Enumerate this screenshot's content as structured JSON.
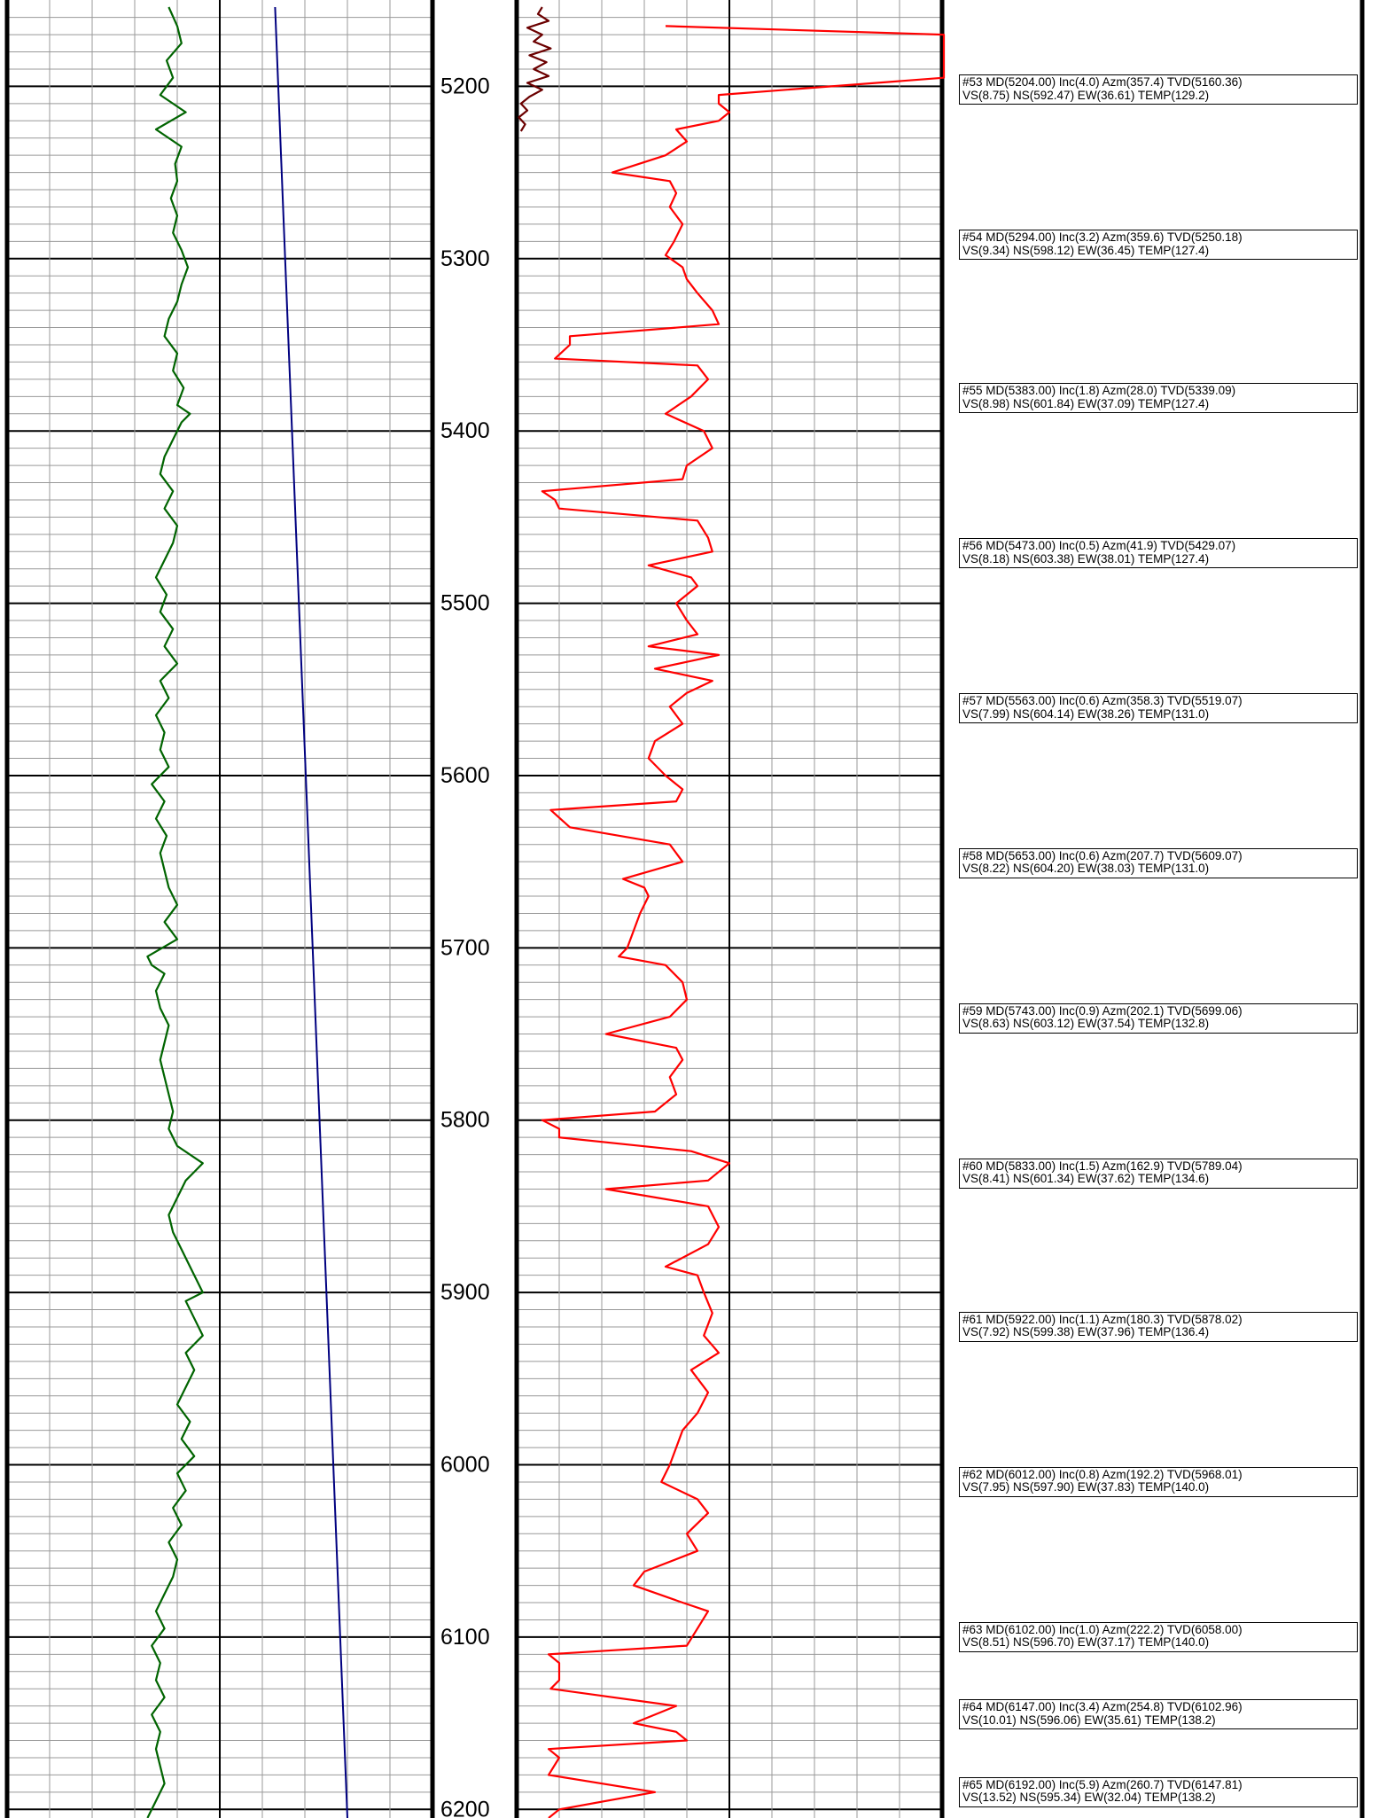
{
  "chart_data": {
    "type": "line",
    "title": "",
    "depth_range": [
      5154,
      6205
    ],
    "depth_labels": [
      5200,
      5300,
      5400,
      5500,
      5600,
      5700,
      5800,
      5900,
      6000,
      6100,
      6200
    ],
    "grid": true,
    "tracks": [
      {
        "name": "",
        "series": [
          {
            "name": "",
            "color": "#006400",
            "depth": [
              5154,
              5165,
              5175,
              5185,
              5195,
              5205,
              5215,
              5225,
              5235,
              5245,
              5255,
              5265,
              5275,
              5285,
              5295,
              5305,
              5315,
              5325,
              5335,
              5345,
              5355,
              5365,
              5375,
              5385,
              5390,
              5395,
              5405,
              5415,
              5425,
              5435,
              5445,
              5455,
              5465,
              5475,
              5485,
              5495,
              5505,
              5515,
              5525,
              5535,
              5545,
              5555,
              5565,
              5575,
              5585,
              5595,
              5605,
              5615,
              5625,
              5635,
              5645,
              5655,
              5665,
              5675,
              5685,
              5695,
              5705,
              5710,
              5715,
              5725,
              5735,
              5745,
              5755,
              5765,
              5775,
              5785,
              5795,
              5805,
              5815,
              5825,
              5830,
              5835,
              5845,
              5855,
              5865,
              5875,
              5885,
              5895,
              5900,
              5905,
              5915,
              5925,
              5935,
              5945,
              5955,
              5965,
              5975,
              5985,
              5995,
              6005,
              6015,
              6025,
              6035,
              6045,
              6055,
              6065,
              6075,
              6085,
              6095,
              6105,
              6115,
              6125,
              6135,
              6145,
              6155,
              6165,
              6175,
              6185,
              6195,
              6205
            ],
            "value": [
              0.76,
              0.8,
              0.82,
              0.75,
              0.78,
              0.72,
              0.84,
              0.7,
              0.82,
              0.79,
              0.8,
              0.77,
              0.8,
              0.78,
              0.82,
              0.85,
              0.82,
              0.8,
              0.76,
              0.74,
              0.8,
              0.78,
              0.83,
              0.8,
              0.86,
              0.82,
              0.78,
              0.74,
              0.72,
              0.78,
              0.74,
              0.8,
              0.78,
              0.74,
              0.7,
              0.75,
              0.72,
              0.78,
              0.74,
              0.8,
              0.72,
              0.76,
              0.7,
              0.74,
              0.72,
              0.76,
              0.68,
              0.74,
              0.7,
              0.75,
              0.72,
              0.74,
              0.76,
              0.8,
              0.74,
              0.8,
              0.66,
              0.68,
              0.74,
              0.7,
              0.72,
              0.76,
              0.74,
              0.72,
              0.74,
              0.76,
              0.78,
              0.76,
              0.8,
              0.92,
              0.88,
              0.84,
              0.8,
              0.76,
              0.78,
              0.82,
              0.86,
              0.9,
              0.92,
              0.84,
              0.88,
              0.92,
              0.84,
              0.88,
              0.84,
              0.8,
              0.86,
              0.82,
              0.88,
              0.8,
              0.84,
              0.78,
              0.82,
              0.76,
              0.8,
              0.78,
              0.74,
              0.7,
              0.74,
              0.68,
              0.72,
              0.7,
              0.74,
              0.68,
              0.72,
              0.7,
              0.72,
              0.74,
              0.7,
              0.66
            ]
          },
          {
            "name": "",
            "color": "#000080",
            "depth": [
              5154,
              6205
            ],
            "value": [
              1.26,
              1.6
            ]
          }
        ]
      },
      {
        "name": "",
        "series": [
          {
            "name": "",
            "color": "#ff0000",
            "depth": [
              5165,
              5170,
              5180,
              5195,
              5205,
              5210,
              5215,
              5220,
              5225,
              5232,
              5240,
              5250,
              5255,
              5262,
              5270,
              5280,
              5290,
              5298,
              5305,
              5312,
              5320,
              5330,
              5338,
              5345,
              5350,
              5358,
              5362,
              5370,
              5380,
              5390,
              5400,
              5410,
              5420,
              5428,
              5435,
              5440,
              5445,
              5452,
              5462,
              5470,
              5478,
              5485,
              5490,
              5500,
              5510,
              5518,
              5525,
              5530,
              5538,
              5545,
              5552,
              5560,
              5570,
              5580,
              5590,
              5600,
              5608,
              5615,
              5620,
              5630,
              5640,
              5650,
              5660,
              5665,
              5670,
              5680,
              5690,
              5700,
              5705,
              5710,
              5720,
              5730,
              5740,
              5750,
              5758,
              5765,
              5775,
              5785,
              5795,
              5800,
              5805,
              5810,
              5818,
              5825,
              5835,
              5840,
              5850,
              5862,
              5872,
              5885,
              5890,
              5900,
              5912,
              5925,
              5935,
              5945,
              5958,
              5970,
              5980,
              5990,
              6000,
              6010,
              6020,
              6028,
              6040,
              6050,
              6062,
              6070,
              6080,
              6085,
              6095,
              6105,
              6110,
              6115,
              6125,
              6130,
              6140,
              6150,
              6155,
              6160,
              6165,
              6170,
              6180,
              6190,
              6200,
              6205
            ],
            "value": [
              0.7,
              2.1,
              2.1,
              2.1,
              0.95,
              0.95,
              1.0,
              0.95,
              0.75,
              0.8,
              0.7,
              0.45,
              0.72,
              0.75,
              0.72,
              0.78,
              0.74,
              0.7,
              0.78,
              0.8,
              0.85,
              0.92,
              0.95,
              0.25,
              0.25,
              0.18,
              0.85,
              0.9,
              0.82,
              0.7,
              0.88,
              0.92,
              0.8,
              0.78,
              0.12,
              0.18,
              0.2,
              0.85,
              0.9,
              0.92,
              0.62,
              0.82,
              0.85,
              0.75,
              0.8,
              0.85,
              0.62,
              0.95,
              0.65,
              0.92,
              0.8,
              0.72,
              0.78,
              0.65,
              0.62,
              0.7,
              0.78,
              0.75,
              0.16,
              0.25,
              0.72,
              0.78,
              0.5,
              0.6,
              0.62,
              0.58,
              0.55,
              0.52,
              0.48,
              0.7,
              0.78,
              0.8,
              0.72,
              0.42,
              0.75,
              0.78,
              0.72,
              0.75,
              0.65,
              0.12,
              0.2,
              0.2,
              0.82,
              1.0,
              0.9,
              0.42,
              0.9,
              0.95,
              0.9,
              0.7,
              0.85,
              0.88,
              0.92,
              0.88,
              0.95,
              0.82,
              0.9,
              0.85,
              0.78,
              0.75,
              0.72,
              0.68,
              0.85,
              0.9,
              0.8,
              0.85,
              0.6,
              0.55,
              0.78,
              0.9,
              0.85,
              0.8,
              0.15,
              0.2,
              0.2,
              0.16,
              0.75,
              0.55,
              0.75,
              0.8,
              0.15,
              0.2,
              0.15,
              0.65,
              0.2,
              0.15
            ]
          },
          {
            "name": "",
            "color": "#6b0000",
            "depth": [
              5154,
              5158,
              5162,
              5166,
              5170,
              5174,
              5178,
              5182,
              5186,
              5190,
              5194,
              5198,
              5202,
              5206,
              5210,
              5214,
              5218,
              5222,
              5226
            ],
            "value": [
              0.12,
              0.1,
              0.15,
              0.05,
              0.12,
              0.08,
              0.16,
              0.06,
              0.14,
              0.08,
              0.15,
              0.05,
              0.12,
              0.06,
              0.02,
              0.05,
              0.01,
              0.04,
              0.02
            ]
          }
        ]
      }
    ]
  },
  "survey_stations": [
    {
      "line1": "#53 MD(5204.00) Inc(4.0) Azm(357.4) TVD(5160.36)",
      "line2": "VS(8.75) NS(592.47) EW(36.61) TEMP(129.2)"
    },
    {
      "line1": "#54 MD(5294.00) Inc(3.2) Azm(359.6) TVD(5250.18)",
      "line2": "VS(9.34) NS(598.12) EW(36.45) TEMP(127.4)"
    },
    {
      "line1": "#55 MD(5383.00) Inc(1.8) Azm(28.0) TVD(5339.09)",
      "line2": "VS(8.98) NS(601.84) EW(37.09) TEMP(127.4)"
    },
    {
      "line1": "#56 MD(5473.00) Inc(0.5) Azm(41.9) TVD(5429.07)",
      "line2": "VS(8.18) NS(603.38) EW(38.01) TEMP(127.4)"
    },
    {
      "line1": "#57 MD(5563.00) Inc(0.6) Azm(358.3) TVD(5519.07)",
      "line2": "VS(7.99) NS(604.14) EW(38.26) TEMP(131.0)"
    },
    {
      "line1": "#58 MD(5653.00) Inc(0.6) Azm(207.7) TVD(5609.07)",
      "line2": "VS(8.22) NS(604.20) EW(38.03) TEMP(131.0)"
    },
    {
      "line1": "#59 MD(5743.00) Inc(0.9) Azm(202.1) TVD(5699.06)",
      "line2": "VS(8.63) NS(603.12) EW(37.54) TEMP(132.8)"
    },
    {
      "line1": "#60 MD(5833.00) Inc(1.5) Azm(162.9) TVD(5789.04)",
      "line2": "VS(8.41) NS(601.34) EW(37.62) TEMP(134.6)"
    },
    {
      "line1": "#61 MD(5922.00) Inc(1.1) Azm(180.3) TVD(5878.02)",
      "line2": "VS(7.92) NS(599.38) EW(37.96) TEMP(136.4)"
    },
    {
      "line1": "#62 MD(6012.00) Inc(0.8) Azm(192.2) TVD(5968.01)",
      "line2": "VS(7.95) NS(597.90) EW(37.83) TEMP(140.0)"
    },
    {
      "line1": "#63 MD(6102.00) Inc(1.0) Azm(222.2) TVD(6058.00)",
      "line2": "VS(8.51) NS(596.70) EW(37.17) TEMP(140.0)"
    },
    {
      "line1": "#64 MD(6147.00) Inc(3.4) Azm(254.8) TVD(6102.96)",
      "line2": "VS(10.01) NS(596.06) EW(35.61) TEMP(138.2)"
    },
    {
      "line1": "#65 MD(6192.00) Inc(5.9) Azm(260.7) TVD(6147.81)",
      "line2": "VS(13.52) NS(595.34) EW(32.04) TEMP(138.2)"
    }
  ]
}
